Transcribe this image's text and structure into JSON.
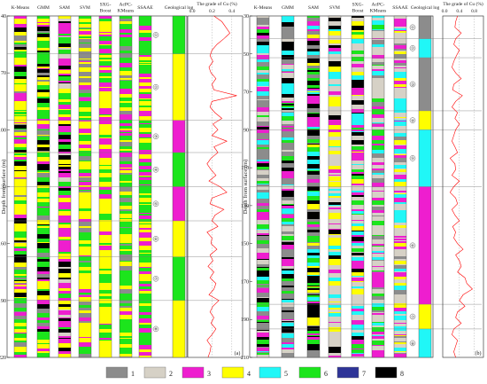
{
  "palette": {
    "1": "#8c8c8c",
    "2": "#d6d1c6",
    "3": "#ee1ecf",
    "4": "#fffe00",
    "5": "#20f7f7",
    "6": "#1ce51c",
    "7": "#2e3497",
    "8": "#000000"
  },
  "cu_line_color": "#ff0000",
  "legend_items": [
    {
      "code": 1,
      "label": "1"
    },
    {
      "code": 2,
      "label": "2"
    },
    {
      "code": 3,
      "label": "3"
    },
    {
      "code": 4,
      "label": "4"
    },
    {
      "code": 5,
      "label": "5"
    },
    {
      "code": 6,
      "label": "6"
    },
    {
      "code": 7,
      "label": "7"
    },
    {
      "code": 8,
      "label": "8"
    }
  ],
  "panels": [
    {
      "id": "a",
      "panel_label": "(a)",
      "y_axis_title": "Depth from surface (m)",
      "depth_range": [
        40,
        220
      ],
      "depth_ticks": [
        "40",
        "70",
        "100",
        "130",
        "160",
        "190",
        "220"
      ],
      "columns": [
        {
          "name": "K-Means"
        },
        {
          "name": "GMM"
        },
        {
          "name": "SAM"
        },
        {
          "name": "SVM"
        },
        {
          "name": "SXG-\nBoost"
        },
        {
          "name": "AcPC-\nKMeans"
        },
        {
          "name": "SSAAE"
        }
      ],
      "column_palettes": [
        [
          4,
          6,
          8,
          1,
          3
        ],
        [
          6,
          8,
          4,
          1,
          3
        ],
        [
          3,
          4,
          6,
          2,
          8
        ],
        [
          4,
          1,
          6,
          3
        ],
        [
          4,
          6,
          3
        ],
        [
          6,
          4,
          1,
          3
        ],
        [
          6,
          4,
          3
        ]
      ],
      "geo_log_title": "Geological log",
      "geo_log": [
        {
          "from": 40,
          "to": 60,
          "code": 6
        },
        {
          "from": 60,
          "to": 95,
          "code": 4
        },
        {
          "from": 95,
          "to": 112,
          "code": 3
        },
        {
          "from": 112,
          "to": 130,
          "code": 6
        },
        {
          "from": 130,
          "to": 148,
          "code": 3
        },
        {
          "from": 148,
          "to": 167,
          "code": 4
        },
        {
          "from": 167,
          "to": 190,
          "code": 6
        },
        {
          "from": 190,
          "to": 220,
          "code": 4
        }
      ],
      "zone_labels": [
        "①",
        "②",
        "③",
        "④",
        "⑤",
        "⑥",
        "⑦",
        "⑧"
      ],
      "cu_title": "The grade of Cu (%)",
      "cu_ticks": [
        "0.0",
        "0.2",
        "0.4"
      ],
      "cu_range": [
        0,
        0.5
      ],
      "cu_depth": [
        40,
        43,
        46,
        49,
        52,
        55,
        58,
        61,
        64,
        67,
        70,
        73,
        76,
        79,
        82,
        85,
        88,
        91,
        94,
        97,
        100,
        103,
        106,
        109,
        112,
        115,
        118,
        121,
        124,
        127,
        130,
        133,
        136,
        139,
        142,
        145,
        148,
        151,
        154,
        157,
        160,
        163,
        166,
        169,
        172,
        175,
        178,
        181,
        184,
        187,
        190,
        193,
        196,
        199,
        202,
        205,
        208,
        211,
        214,
        217,
        220
      ],
      "cu_grade": [
        0.22,
        0.3,
        0.34,
        0.38,
        0.32,
        0.25,
        0.2,
        0.18,
        0.21,
        0.17,
        0.19,
        0.24,
        0.2,
        0.22,
        0.45,
        0.2,
        0.18,
        0.23,
        0.3,
        0.21,
        0.26,
        0.2,
        0.35,
        0.22,
        0.26,
        0.19,
        0.15,
        0.19,
        0.24,
        0.17,
        0.28,
        0.35,
        0.2,
        0.18,
        0.32,
        0.23,
        0.2,
        0.26,
        0.15,
        0.2,
        0.19,
        0.25,
        0.18,
        0.21,
        0.16,
        0.22,
        0.18,
        0.24,
        0.22,
        0.17,
        0.27,
        0.21,
        0.18,
        0.22,
        0.19,
        0.24,
        0.2,
        0.15,
        0.19,
        0.18,
        0.16
      ]
    },
    {
      "id": "b",
      "panel_label": "(b)",
      "y_axis_title": "Depth from surface (m)",
      "depth_range": [
        30,
        210
      ],
      "depth_ticks": [
        "30",
        "50",
        "70",
        "90",
        "110",
        "130",
        "150",
        "170",
        "190",
        "210"
      ],
      "columns": [
        {
          "name": "K-Means"
        },
        {
          "name": "GMM"
        },
        {
          "name": "SAM"
        },
        {
          "name": "SVM"
        },
        {
          "name": "SXG-\nBoost"
        },
        {
          "name": "AcPC-\nKMeans"
        },
        {
          "name": "SSAAE"
        }
      ],
      "column_palettes": [
        [
          1,
          2,
          8,
          5,
          6,
          3
        ],
        [
          1,
          2,
          8,
          5,
          6,
          3
        ],
        [
          8,
          5,
          1,
          3,
          4,
          6
        ],
        [
          2,
          4,
          3,
          5,
          8
        ],
        [
          2,
          3,
          8,
          5,
          4,
          6
        ],
        [
          2,
          3,
          6,
          5,
          1
        ],
        [
          2,
          3,
          5,
          4,
          1
        ]
      ],
      "geo_log_title": "Geological log",
      "geo_log": [
        {
          "from": 30,
          "to": 42,
          "code": 1
        },
        {
          "from": 42,
          "to": 52,
          "code": 5
        },
        {
          "from": 52,
          "to": 80,
          "code": 1
        },
        {
          "from": 80,
          "to": 90,
          "code": 4
        },
        {
          "from": 90,
          "to": 120,
          "code": 5
        },
        {
          "from": 120,
          "to": 182,
          "code": 3
        },
        {
          "from": 182,
          "to": 195,
          "code": 4
        },
        {
          "from": 195,
          "to": 210,
          "code": 5
        }
      ],
      "zone_labels": [
        "①",
        "②",
        "③",
        "④",
        "⑤",
        "⑥",
        "⑦",
        "⑧"
      ],
      "cu_title": "The grade of Cu (%)",
      "cu_ticks": [
        "0.0",
        "0.4",
        "0.8"
      ],
      "cu_range": [
        0,
        1.0
      ],
      "cu_depth": [
        30,
        33,
        36,
        39,
        42,
        45,
        48,
        51,
        54,
        57,
        60,
        63,
        66,
        69,
        72,
        75,
        78,
        81,
        84,
        87,
        90,
        93,
        96,
        99,
        102,
        105,
        108,
        111,
        114,
        117,
        120,
        123,
        126,
        129,
        132,
        135,
        138,
        141,
        144,
        147,
        150,
        153,
        156,
        159,
        162,
        165,
        168,
        171,
        174,
        177,
        180,
        183,
        186,
        189,
        192,
        195,
        198,
        201,
        204,
        207,
        210
      ],
      "cu_grade": [
        0.35,
        0.3,
        0.28,
        0.45,
        0.3,
        0.25,
        0.4,
        0.32,
        0.25,
        0.2,
        0.3,
        0.45,
        0.25,
        0.22,
        0.48,
        0.3,
        0.2,
        0.35,
        0.28,
        0.4,
        0.3,
        0.25,
        0.2,
        0.28,
        0.35,
        0.15,
        0.28,
        0.3,
        0.2,
        0.4,
        0.25,
        0.15,
        0.3,
        0.35,
        0.2,
        0.28,
        0.4,
        0.22,
        0.3,
        0.25,
        0.35,
        0.5,
        0.3,
        0.4,
        0.45,
        0.35,
        0.55,
        0.6,
        0.75,
        0.5,
        0.4,
        0.55,
        0.35,
        0.3,
        0.45,
        0.25,
        0.2,
        0.35,
        0.3,
        0.25,
        0.3
      ]
    }
  ]
}
